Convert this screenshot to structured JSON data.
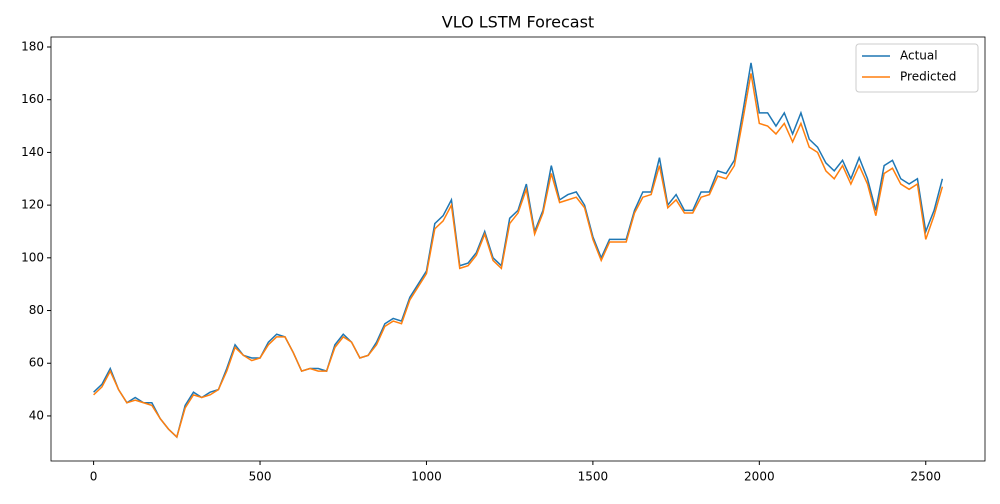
{
  "chart_data": {
    "type": "line",
    "title": "VLO LSTM Forecast",
    "x": [
      0,
      25,
      50,
      75,
      100,
      125,
      150,
      175,
      200,
      225,
      250,
      275,
      300,
      325,
      350,
      375,
      400,
      425,
      450,
      475,
      500,
      525,
      550,
      575,
      600,
      625,
      650,
      675,
      700,
      725,
      750,
      775,
      800,
      825,
      850,
      875,
      900,
      925,
      950,
      975,
      1000,
      1025,
      1050,
      1075,
      1100,
      1125,
      1150,
      1175,
      1200,
      1225,
      1250,
      1275,
      1300,
      1325,
      1350,
      1375,
      1400,
      1425,
      1450,
      1475,
      1500,
      1525,
      1550,
      1575,
      1600,
      1625,
      1650,
      1675,
      1700,
      1725,
      1750,
      1775,
      1800,
      1825,
      1850,
      1875,
      1900,
      1925,
      1950,
      1975,
      2000,
      2025,
      2050,
      2075,
      2100,
      2125,
      2150,
      2175,
      2200,
      2225,
      2250,
      2275,
      2300,
      2325,
      2350,
      2375,
      2400,
      2425,
      2450,
      2475,
      2500,
      2525,
      2550
    ],
    "series": [
      {
        "name": "Actual",
        "color": "#1f77b4",
        "values": [
          49,
          52,
          58,
          50,
          45,
          47,
          45,
          45,
          39,
          35,
          32,
          44,
          49,
          47,
          49,
          50,
          58,
          67,
          63,
          62,
          62,
          68,
          71,
          70,
          64,
          57,
          58,
          58,
          57,
          67,
          71,
          68,
          62,
          63,
          68,
          75,
          77,
          76,
          85,
          90,
          95,
          113,
          116,
          122,
          97,
          98,
          102,
          110,
          100,
          97,
          115,
          118,
          128,
          110,
          118,
          135,
          122,
          124,
          125,
          120,
          108,
          100,
          107,
          107,
          107,
          118,
          125,
          125,
          138,
          120,
          124,
          118,
          118,
          125,
          125,
          133,
          132,
          137,
          155,
          174,
          155,
          155,
          150,
          155,
          147,
          155,
          145,
          142,
          136,
          133,
          137,
          130,
          138,
          130,
          118,
          135,
          137,
          130,
          128,
          130,
          110,
          118,
          130
        ]
      },
      {
        "name": "Predicted",
        "color": "#ff7f0e",
        "values": [
          48,
          51,
          57,
          50,
          45,
          46,
          45,
          44,
          39,
          35,
          32,
          43,
          48,
          47,
          48,
          50,
          57,
          66,
          63,
          61,
          62,
          67,
          70,
          70,
          64,
          57,
          58,
          57,
          57,
          66,
          70,
          68,
          62,
          63,
          67,
          74,
          76,
          75,
          84,
          89,
          94,
          111,
          114,
          120,
          96,
          97,
          101,
          109,
          99,
          96,
          113,
          117,
          126,
          109,
          117,
          132,
          121,
          122,
          123,
          119,
          107,
          99,
          106,
          106,
          106,
          117,
          123,
          124,
          135,
          119,
          122,
          117,
          117,
          123,
          124,
          131,
          130,
          135,
          152,
          170,
          151,
          150,
          147,
          151,
          144,
          151,
          142,
          140,
          133,
          130,
          135,
          128,
          135,
          128,
          116,
          132,
          134,
          128,
          126,
          128,
          107,
          116,
          127
        ]
      }
    ],
    "xlim": [
      -128,
      2678
    ],
    "ylim": [
      22.9,
      183.8
    ],
    "xticks": [
      0,
      500,
      1000,
      1500,
      2000,
      2500
    ],
    "yticks": [
      40,
      60,
      80,
      100,
      120,
      140,
      160,
      180
    ],
    "legend": "upper right"
  }
}
